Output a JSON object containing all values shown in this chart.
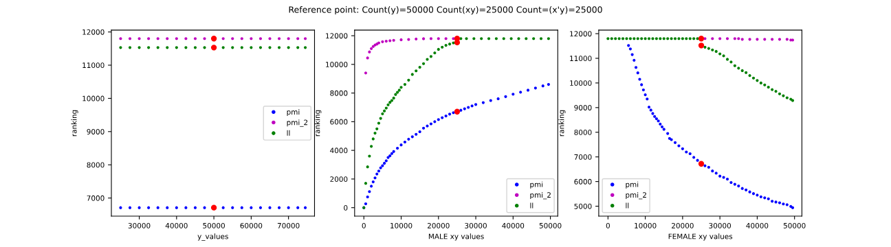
{
  "chart_data": [
    {
      "type": "scatter",
      "xlabel": "y_values",
      "ylabel": "ranking",
      "xlim": [
        22525,
        76975
      ],
      "ylim": [
        6455,
        12055
      ],
      "xticks": [
        30000,
        40000,
        50000,
        60000,
        70000
      ],
      "yticks": [
        7000,
        8000,
        9000,
        10000,
        11000,
        12000
      ],
      "legend": "right",
      "marker": "circle",
      "grid": false,
      "series": [
        {
          "name": "pmi",
          "color": "#0000ff",
          "x": [
            25000,
            27500,
            30000,
            32500,
            35000,
            37500,
            40000,
            42500,
            45000,
            47500,
            52500,
            55000,
            57500,
            60000,
            62500,
            65000,
            67500,
            70000,
            72500,
            74500
          ],
          "values": [
            6710,
            6710,
            6710,
            6710,
            6710,
            6710,
            6710,
            6710,
            6710,
            6710,
            6710,
            6710,
            6710,
            6710,
            6710,
            6710,
            6710,
            6710,
            6710,
            6710
          ]
        },
        {
          "name": "pmi_2",
          "color": "#bf00bf",
          "x": [
            25000,
            27500,
            30000,
            32500,
            35000,
            37500,
            40000,
            42500,
            45000,
            47500,
            52500,
            55000,
            57500,
            60000,
            62500,
            65000,
            67500,
            70000,
            72500,
            74500
          ],
          "values": [
            11800,
            11800,
            11800,
            11800,
            11800,
            11800,
            11800,
            11800,
            11800,
            11800,
            11800,
            11800,
            11800,
            11800,
            11800,
            11800,
            11800,
            11800,
            11800,
            11800
          ]
        },
        {
          "name": "ll",
          "color": "#008000",
          "x": [
            25000,
            27500,
            30000,
            32500,
            35000,
            37500,
            40000,
            42500,
            45000,
            47500,
            52500,
            55000,
            57500,
            60000,
            62500,
            65000,
            67500,
            70000,
            72500,
            74500
          ],
          "values": [
            11530,
            11530,
            11530,
            11530,
            11530,
            11530,
            11530,
            11530,
            11530,
            11530,
            11530,
            11530,
            11530,
            11530,
            11530,
            11530,
            11530,
            11530,
            11530,
            11530
          ]
        },
        {
          "color": "#ff0000",
          "x": [
            50000,
            50000,
            50000
          ],
          "values": [
            6710,
            11800,
            11530
          ]
        }
      ]
    },
    {
      "type": "scatter",
      "title": "Reference point: Count(y)=50000 Count(xy)=25000 Count=(x'y)=25000",
      "xlabel": "MALE xy values",
      "ylabel": "ranking",
      "xlim": [
        -2475,
        51975
      ],
      "ylim": [
        -590,
        12390
      ],
      "xticks": [
        0,
        10000,
        20000,
        30000,
        40000,
        50000
      ],
      "yticks": [
        0,
        2000,
        4000,
        6000,
        8000,
        10000,
        12000
      ],
      "legend": "bottom right",
      "marker": "circle",
      "grid": false,
      "series": [
        {
          "name": "pmi",
          "color": "#0000ff",
          "x": [
            0,
            500,
            1000,
            1500,
            2000,
            2500,
            3000,
            3500,
            4000,
            4500,
            5000,
            5500,
            6000,
            6500,
            7000,
            7500,
            8000,
            9000,
            10000,
            11000,
            12000,
            13000,
            14000,
            15000,
            16000,
            17000,
            18000,
            19000,
            20000,
            21000,
            22000,
            23000,
            24000,
            26000,
            27000,
            28000,
            29000,
            30000,
            32000,
            34000,
            36000,
            38000,
            40000,
            42000,
            44000,
            46000,
            48000,
            49500
          ],
          "values": [
            0,
            270,
            750,
            1120,
            1500,
            1800,
            2080,
            2350,
            2560,
            2780,
            2930,
            3100,
            3270,
            3500,
            3620,
            3780,
            3920,
            4150,
            4380,
            4580,
            4780,
            4950,
            5120,
            5300,
            5550,
            5700,
            5850,
            6000,
            6150,
            6280,
            6400,
            6530,
            6630,
            6800,
            6900,
            7000,
            7100,
            7200,
            7330,
            7480,
            7600,
            7750,
            7920,
            8060,
            8200,
            8350,
            8500,
            8600
          ]
        },
        {
          "name": "pmi_2",
          "color": "#bf00bf",
          "x": [
            500,
            1000,
            1500,
            2000,
            2500,
            3000,
            3500,
            4000,
            5000,
            6000,
            7000,
            8000,
            10000,
            12000,
            14000,
            16000,
            18000,
            20000,
            22000,
            24000
          ],
          "values": [
            9400,
            10450,
            10870,
            11100,
            11250,
            11350,
            11420,
            11500,
            11580,
            11620,
            11650,
            11680,
            11720,
            11740,
            11770,
            11790,
            11800,
            11800,
            11800,
            11800
          ]
        },
        {
          "name": "ll",
          "color": "#008000",
          "x": [
            0,
            500,
            1000,
            1500,
            2000,
            2500,
            3000,
            3500,
            4000,
            4500,
            5000,
            5500,
            6000,
            6500,
            7000,
            7500,
            8000,
            8500,
            9000,
            9500,
            10000,
            11000,
            12000,
            13000,
            14000,
            15000,
            16000,
            17000,
            18000,
            19000,
            20000,
            21000,
            22000,
            23000,
            24000,
            26000,
            27500,
            29500,
            31500,
            33500,
            35500,
            37500,
            39500,
            41500,
            43500,
            45500,
            47500,
            49500
          ],
          "values": [
            0,
            1700,
            2850,
            3600,
            4280,
            4800,
            5200,
            5500,
            5900,
            6230,
            6550,
            6750,
            6950,
            7180,
            7350,
            7480,
            7650,
            7900,
            8050,
            8200,
            8400,
            8600,
            8900,
            9300,
            9550,
            9800,
            10050,
            10350,
            10550,
            10800,
            11050,
            11200,
            11330,
            11420,
            11500,
            11800,
            11800,
            11800,
            11800,
            11800,
            11800,
            11800,
            11800,
            11800,
            11800,
            11800,
            11800,
            11800
          ]
        },
        {
          "color": "#ff0000",
          "x": [
            25000,
            25000,
            25000
          ],
          "values": [
            6700,
            11800,
            11530
          ]
        }
      ]
    },
    {
      "type": "scatter",
      "xlabel": "FEMALE xy values",
      "ylabel": "ranking",
      "xlim": [
        -2475,
        51975
      ],
      "ylim": [
        4597,
        12143
      ],
      "xticks": [
        0,
        10000,
        20000,
        30000,
        40000,
        50000
      ],
      "yticks": [
        5000,
        6000,
        7000,
        8000,
        9000,
        10000,
        11000,
        12000
      ],
      "legend": "bottom left",
      "marker": "circle",
      "grid": false,
      "series": [
        {
          "name": "pmi",
          "color": "#0000ff",
          "x": [
            5500,
            6000,
            6500,
            7000,
            7500,
            8000,
            8500,
            9000,
            9500,
            10000,
            10500,
            11000,
            11500,
            12000,
            12500,
            13000,
            13500,
            14000,
            14500,
            15000,
            16000,
            16500,
            17000,
            18000,
            19000,
            20000,
            21000,
            22000,
            23000,
            24000,
            26000,
            27000,
            28000,
            29000,
            30000,
            31000,
            32000,
            33000,
            34000,
            35000,
            36000,
            37000,
            38000,
            39000,
            40000,
            41000,
            42000,
            43000,
            44000,
            45000,
            46000,
            47000,
            48000,
            49000,
            49500
          ],
          "values": [
            11520,
            11380,
            11150,
            10920,
            10630,
            10410,
            10150,
            9930,
            9720,
            9520,
            9350,
            9020,
            8900,
            8760,
            8640,
            8550,
            8460,
            8330,
            8220,
            8120,
            7950,
            7750,
            7700,
            7580,
            7450,
            7330,
            7200,
            7130,
            6980,
            6860,
            6640,
            6580,
            6430,
            6340,
            6220,
            6170,
            6100,
            5960,
            5890,
            5820,
            5720,
            5660,
            5580,
            5510,
            5450,
            5380,
            5340,
            5300,
            5200,
            5170,
            5140,
            5090,
            5060,
            4990,
            4940
          ]
        },
        {
          "name": "pmi_2",
          "color": "#bf00bf",
          "x": [
            26000,
            28000,
            30000,
            32000,
            34000,
            35000,
            36000,
            38000,
            40000,
            42000,
            44000,
            46000,
            48000,
            49000,
            49500
          ],
          "values": [
            11800,
            11800,
            11800,
            11800,
            11800,
            11800,
            11770,
            11770,
            11770,
            11770,
            11770,
            11770,
            11770,
            11740,
            11740
          ]
        },
        {
          "name": "ll",
          "color": "#008000",
          "x": [
            0,
            1000,
            2000,
            3000,
            4000,
            5000,
            6000,
            7000,
            8000,
            9000,
            10000,
            11000,
            12000,
            13000,
            14000,
            15000,
            16000,
            17000,
            18000,
            19000,
            20000,
            21000,
            22000,
            23000,
            24000,
            26000,
            27000,
            28000,
            29000,
            30000,
            31000,
            32000,
            33000,
            34000,
            35000,
            36000,
            37000,
            38000,
            39000,
            40000,
            41000,
            42000,
            43000,
            44000,
            45000,
            46000,
            47000,
            48000,
            49000,
            49500
          ],
          "values": [
            11800,
            11800,
            11800,
            11800,
            11800,
            11800,
            11800,
            11800,
            11800,
            11800,
            11800,
            11800,
            11800,
            11800,
            11800,
            11800,
            11800,
            11800,
            11800,
            11800,
            11800,
            11800,
            11800,
            11800,
            11800,
            11450,
            11400,
            11340,
            11280,
            11180,
            11100,
            10960,
            10850,
            10700,
            10600,
            10500,
            10420,
            10300,
            10200,
            10100,
            10000,
            9920,
            9830,
            9730,
            9660,
            9560,
            9480,
            9400,
            9340,
            9290
          ]
        },
        {
          "color": "#ff0000",
          "x": [
            25000,
            25000,
            25000
          ],
          "values": [
            6720,
            11800,
            11520
          ]
        }
      ]
    }
  ]
}
